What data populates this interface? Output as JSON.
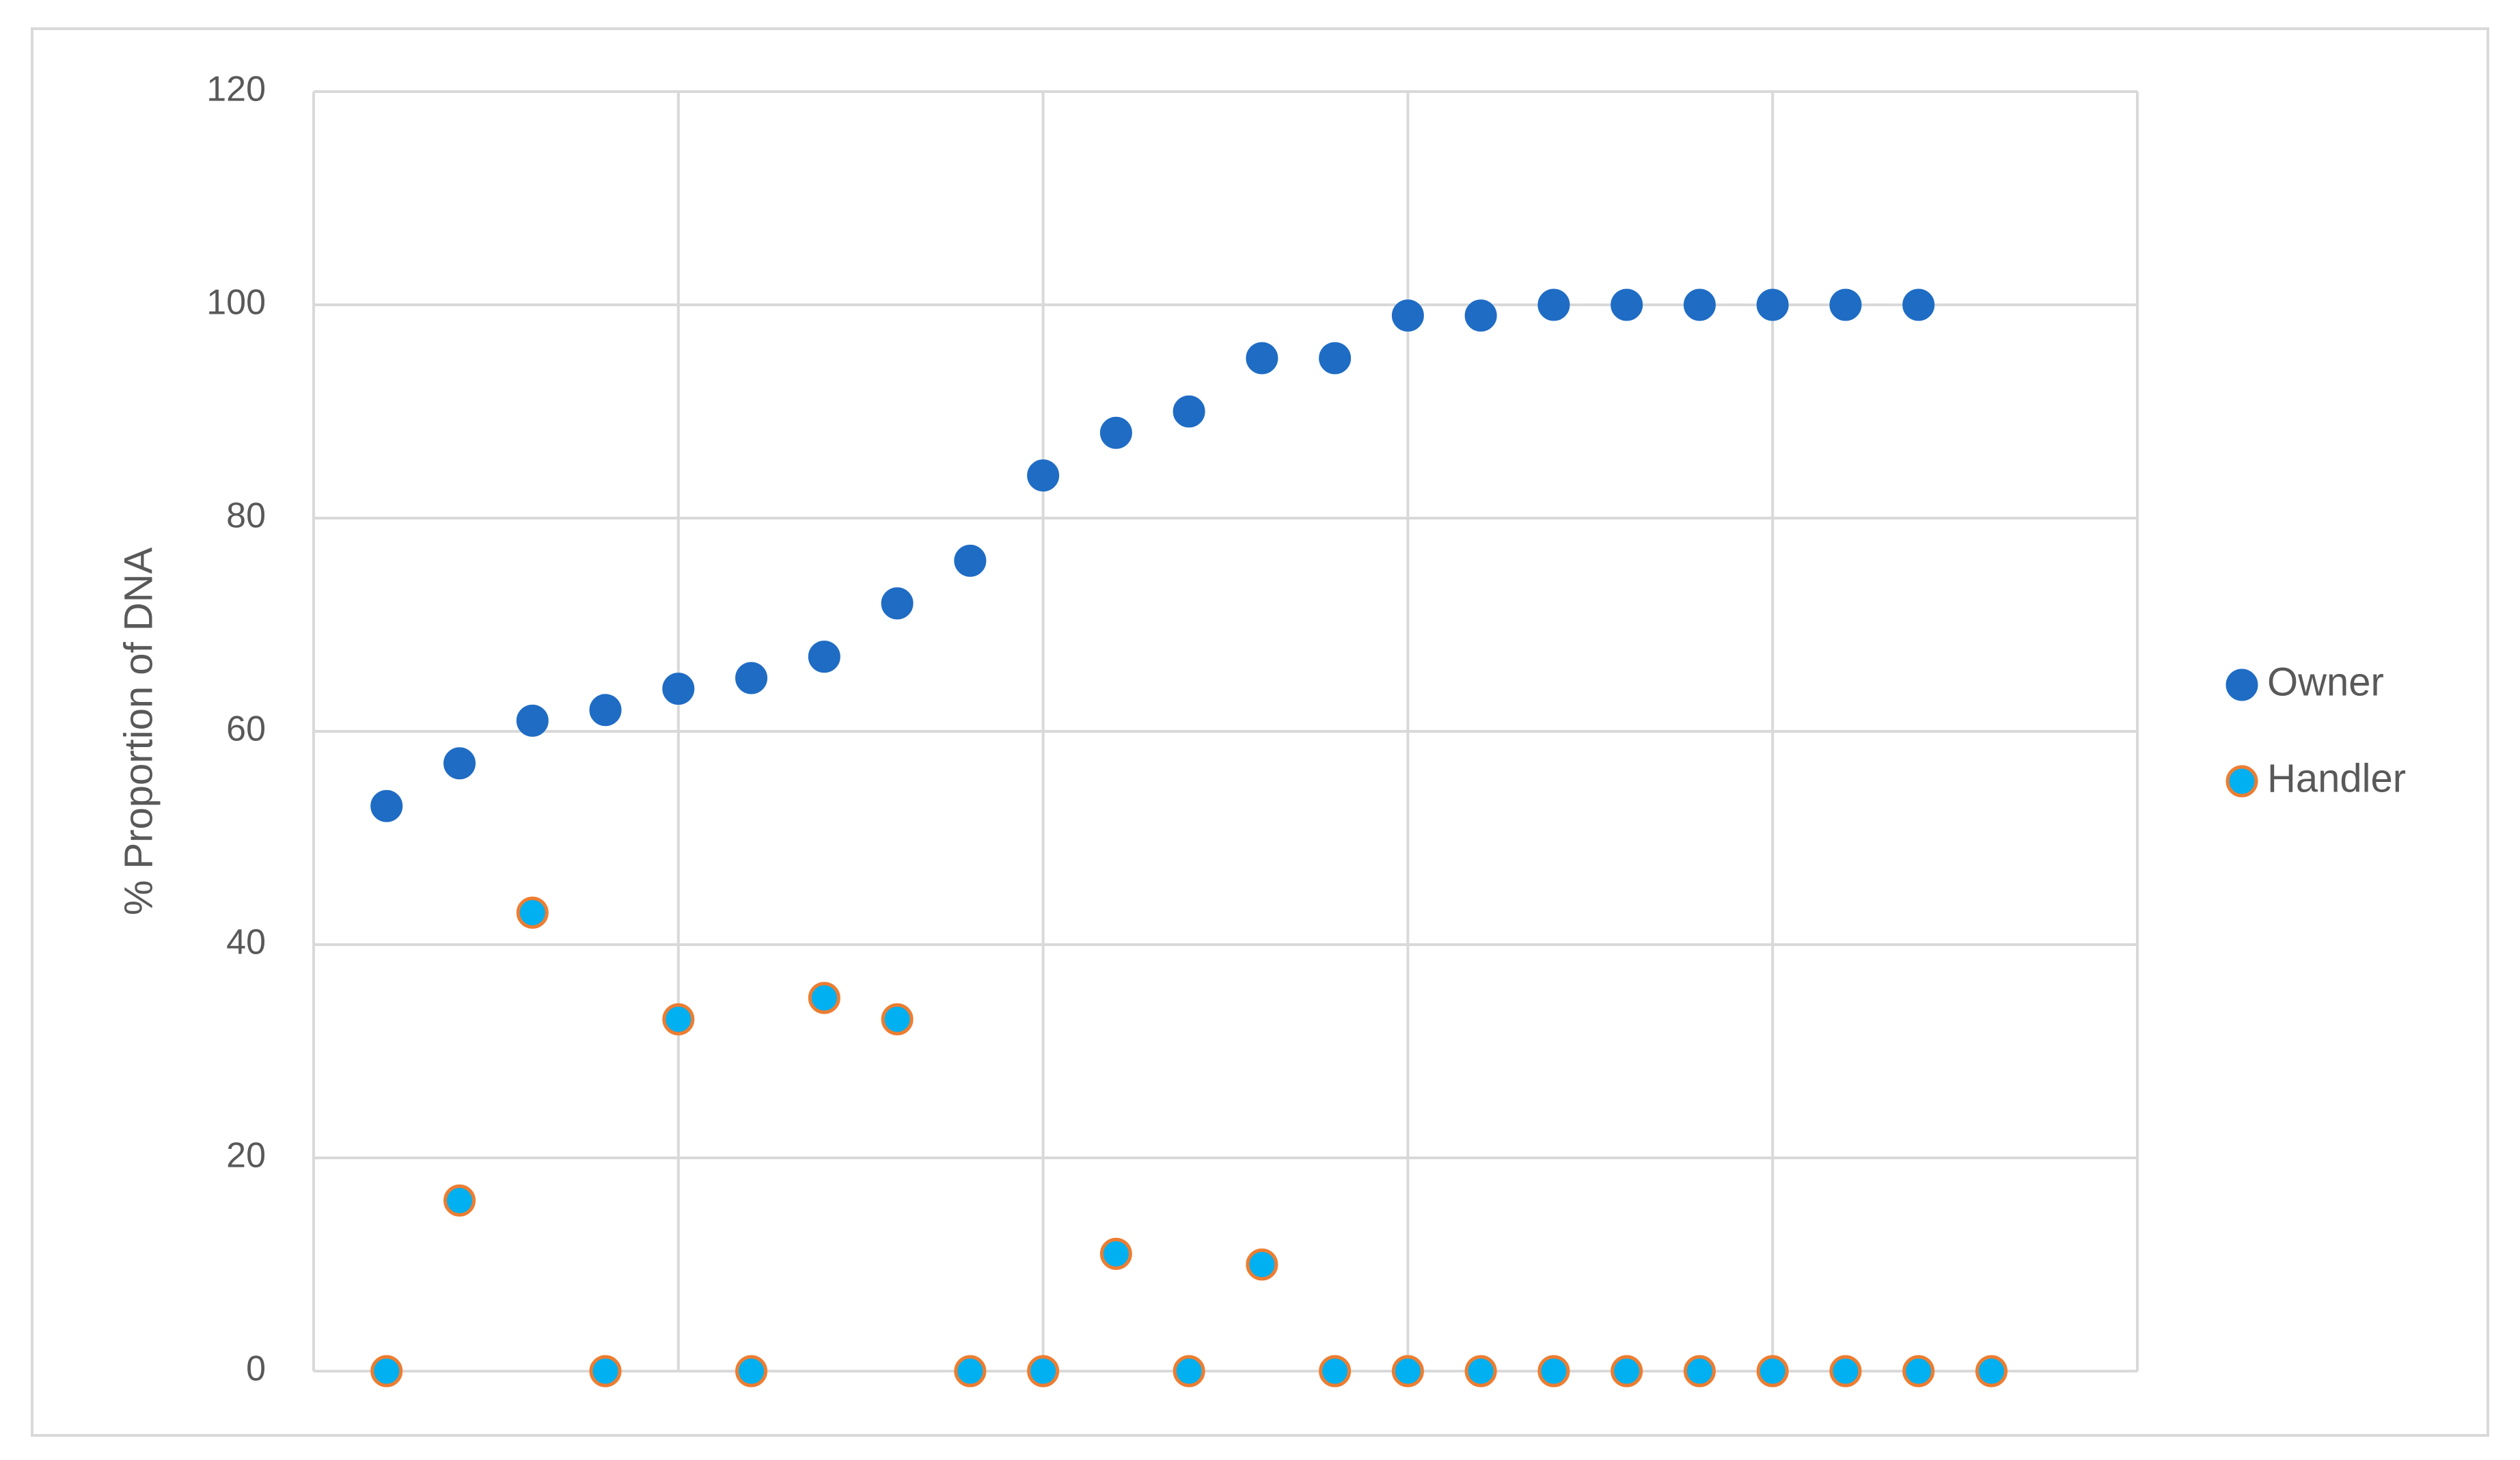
{
  "chart_data": {
    "type": "scatter",
    "ylabel": "% Proportion of DNA",
    "xlim": [
      0,
      25
    ],
    "xticks": [
      0,
      5,
      10,
      15,
      20,
      25
    ],
    "xtick_labels": false,
    "ylim": [
      0,
      120
    ],
    "yticks": [
      0,
      20,
      40,
      60,
      80,
      100,
      120
    ],
    "grid": true,
    "legend": "right",
    "series": [
      {
        "name": "Owner",
        "color": "#1f6cc4",
        "edgecolor": "#1f6cc4",
        "x": [
          1,
          2,
          3,
          4,
          5,
          6,
          7,
          8,
          9,
          10,
          11,
          12,
          13,
          14,
          15,
          16,
          17,
          18,
          19,
          20,
          21,
          22
        ],
        "values": [
          53,
          57,
          61,
          62,
          64,
          65,
          67,
          72,
          76,
          84,
          88,
          90,
          95,
          95,
          99,
          99,
          100,
          100,
          100,
          100,
          100,
          100
        ]
      },
      {
        "name": "Handler",
        "color": "#00b0f0",
        "edgecolor": "#ed7d31",
        "x": [
          1,
          2,
          3,
          4,
          5,
          6,
          7,
          8,
          9,
          10,
          11,
          12,
          13,
          14,
          15,
          16,
          17,
          18,
          19,
          20,
          21,
          22,
          23
        ],
        "values": [
          0,
          16,
          43,
          0,
          33,
          0,
          35,
          33,
          0,
          0,
          11,
          0,
          10,
          0,
          0,
          0,
          0,
          0,
          0,
          0,
          0,
          0,
          0
        ]
      }
    ]
  }
}
